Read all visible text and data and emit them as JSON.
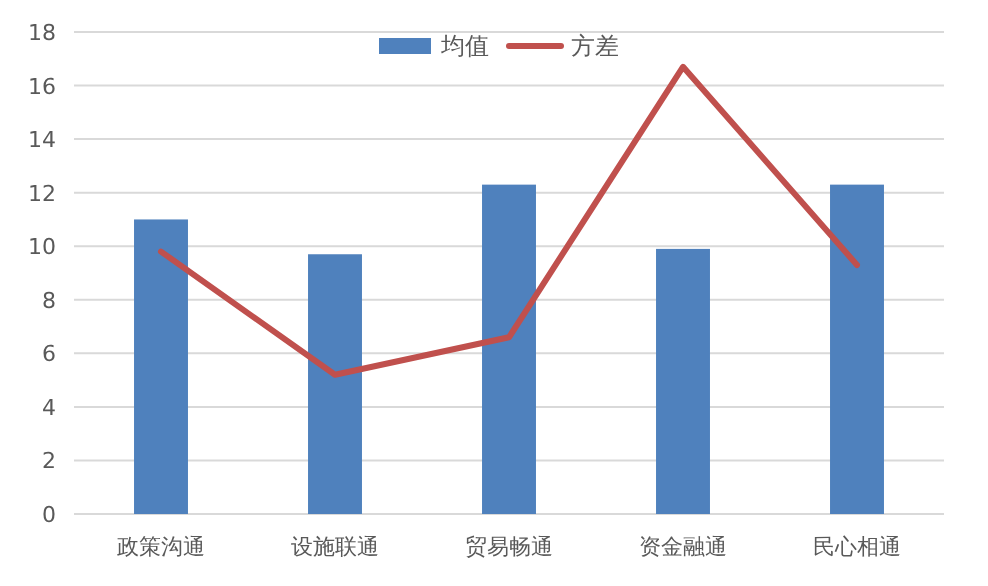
{
  "chart_data": {
    "type": "bar",
    "categories": [
      "政策沟通",
      "设施联通",
      "贸易畅通",
      "资金融通",
      "民心相通"
    ],
    "series": [
      {
        "name": "均值",
        "color": "#4f81bd",
        "values": [
          11.0,
          9.7,
          12.3,
          9.9,
          12.3
        ]
      },
      {
        "name": "方差",
        "type": "line",
        "color": "#c0504d",
        "values": [
          9.8,
          5.2,
          6.6,
          16.7,
          9.3
        ]
      }
    ],
    "ylim": [
      0,
      18
    ],
    "yticks": [
      0,
      2,
      4,
      6,
      8,
      10,
      12,
      14,
      16,
      18
    ],
    "grid": "y",
    "legend": "top",
    "marker": "none"
  }
}
